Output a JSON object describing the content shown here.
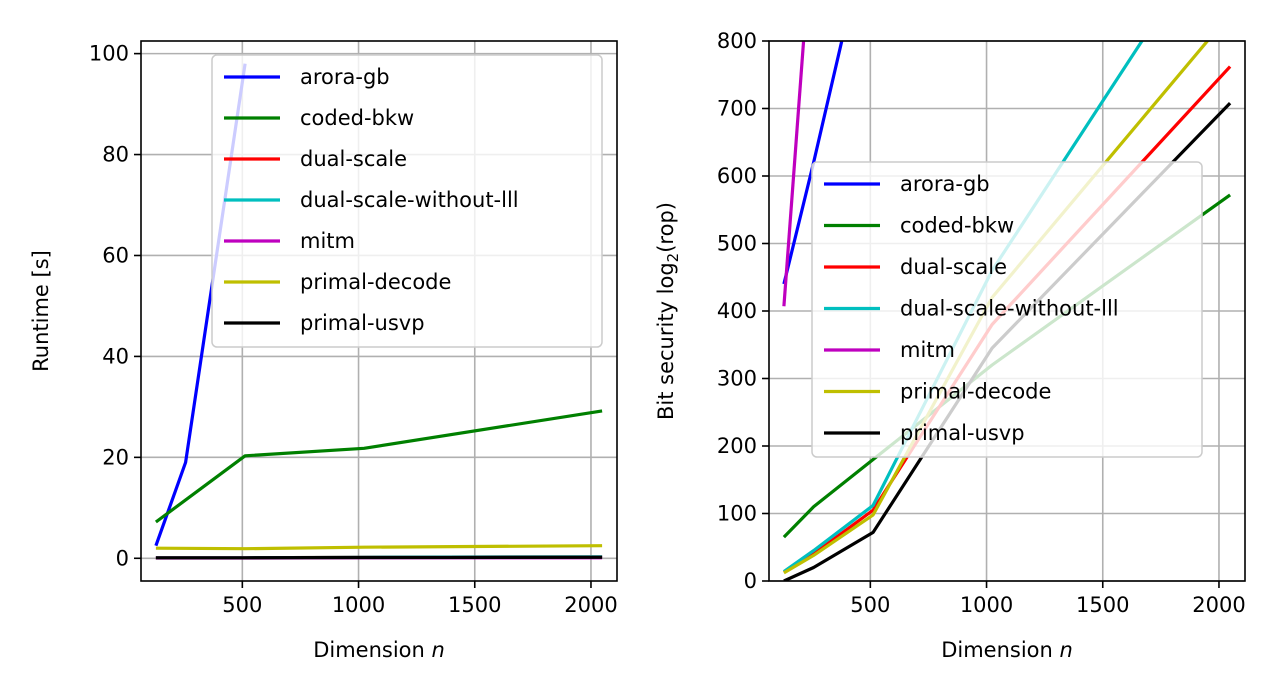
{
  "chart_data": [
    {
      "type": "line",
      "xlabel": "Dimension",
      "xlabel_var": "n",
      "ylabel": "Runtime [s]",
      "xlim": [
        64,
        2112
      ],
      "ylim": [
        -4.5,
        102.5
      ],
      "xticks": [
        500,
        1000,
        1500,
        2000
      ],
      "yticks": [
        0,
        20,
        40,
        60,
        80,
        100
      ],
      "grid": true,
      "legend": "top-right",
      "series": [
        {
          "name": "arora-gb",
          "color": "#0000ff",
          "x": [
            128,
            256,
            512
          ],
          "y": [
            2.5,
            19,
            98
          ]
        },
        {
          "name": "coded-bkw",
          "color": "#008000",
          "x": [
            128,
            512,
            1024,
            2048
          ],
          "y": [
            7.2,
            20.3,
            21.8,
            29.2
          ]
        },
        {
          "name": "dual-scale",
          "color": "#ff0000",
          "x": [
            128,
            512,
            1024,
            2048
          ],
          "y": [
            0.1,
            0.1,
            0.2,
            0.3
          ]
        },
        {
          "name": "dual-scale-without-lll",
          "color": "#00bfbf",
          "x": [
            128,
            512,
            1024,
            2048
          ],
          "y": [
            0.1,
            0.1,
            0.2,
            0.3
          ]
        },
        {
          "name": "mitm",
          "color": "#bf00bf",
          "x": [
            128,
            512,
            1024,
            2048
          ],
          "y": [
            0.05,
            0.05,
            0.1,
            0.1
          ]
        },
        {
          "name": "primal-decode",
          "color": "#bfbf00",
          "x": [
            128,
            512,
            1024,
            2048
          ],
          "y": [
            2.0,
            1.9,
            2.2,
            2.5
          ]
        },
        {
          "name": "primal-usvp",
          "color": "#000000",
          "x": [
            128,
            512,
            1024,
            2048
          ],
          "y": [
            0.1,
            0.1,
            0.15,
            0.2
          ]
        }
      ]
    },
    {
      "type": "line",
      "xlabel": "Dimension",
      "xlabel_var": "n",
      "ylabel": "Bit security log2(rop)",
      "xlim": [
        64,
        2112
      ],
      "ylim": [
        0,
        800
      ],
      "xticks": [
        500,
        1000,
        1500,
        2000
      ],
      "yticks": [
        0,
        100,
        200,
        300,
        400,
        500,
        600,
        700,
        800
      ],
      "grid": true,
      "legend": "center-right",
      "series": [
        {
          "name": "arora-gb",
          "color": "#0000ff",
          "x": [
            128,
            256,
            512
          ],
          "y": [
            440,
            620,
            1000
          ]
        },
        {
          "name": "coded-bkw",
          "color": "#008000",
          "x": [
            128,
            256,
            512,
            1024,
            2048
          ],
          "y": [
            65,
            110,
            180,
            320,
            572
          ]
        },
        {
          "name": "dual-scale",
          "color": "#ff0000",
          "x": [
            128,
            256,
            512,
            1024,
            2048
          ],
          "y": [
            13,
            40,
            105,
            380,
            762
          ]
        },
        {
          "name": "dual-scale-without-lll",
          "color": "#00bfbf",
          "x": [
            128,
            256,
            512,
            1024,
            2048
          ],
          "y": [
            14,
            45,
            112,
            460,
            1000
          ]
        },
        {
          "name": "mitm",
          "color": "#bf00bf",
          "x": [
            128,
            256
          ],
          "y": [
            407,
            1000
          ]
        },
        {
          "name": "primal-decode",
          "color": "#bfbf00",
          "x": [
            128,
            256,
            512,
            1024,
            2048
          ],
          "y": [
            12,
            38,
            98,
            420,
            840
          ]
        },
        {
          "name": "primal-usvp",
          "color": "#000000",
          "x": [
            128,
            256,
            512,
            1024,
            2048
          ],
          "y": [
            0,
            20,
            72,
            345,
            708
          ]
        }
      ]
    }
  ]
}
